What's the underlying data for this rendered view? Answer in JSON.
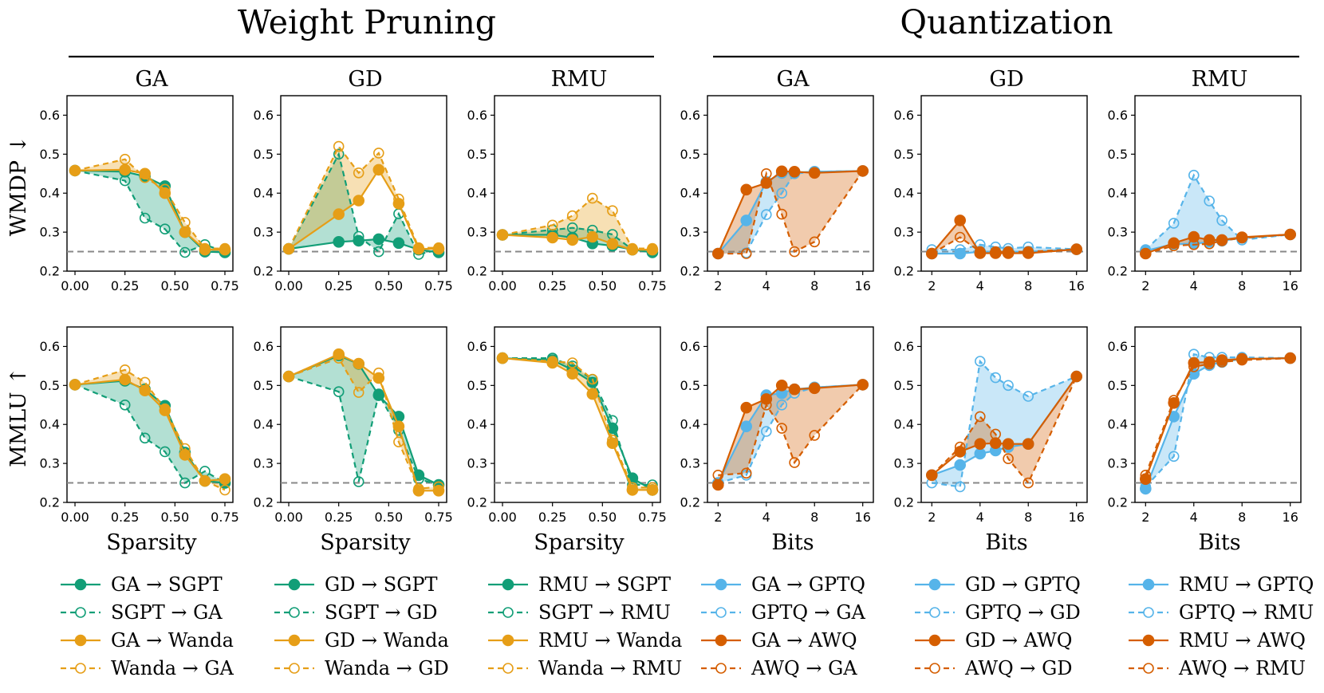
{
  "groups": [
    {
      "title": "Weight Pruning",
      "xlabel": "Sparsity"
    },
    {
      "title": "Quantization",
      "xlabel": "Bits"
    }
  ],
  "columns": [
    "GA",
    "GD",
    "RMU",
    "GA",
    "GD",
    "RMU"
  ],
  "rows": [
    {
      "label": "WMDP ↓"
    },
    {
      "label": "MMLU ↑"
    }
  ],
  "colors": {
    "green": "#129e77",
    "orange": "#e69e17",
    "blue": "#56b4e9",
    "darkorange": "#d55e00",
    "baseline": "#888888"
  },
  "legends": [
    [
      "GA → SGPT",
      "SGPT → GA",
      "GA → Wanda",
      "Wanda → GA"
    ],
    [
      "GD → SGPT",
      "SGPT → GD",
      "GD → Wanda",
      "Wanda → GD"
    ],
    [
      "RMU → SGPT",
      "SGPT → RMU",
      "RMU → Wanda",
      "Wanda → RMU"
    ],
    [
      "GA → GPTQ",
      "GPTQ → GA",
      "GA → AWQ",
      "AWQ → GA"
    ],
    [
      "GD → GPTQ",
      "GPTQ → GD",
      "GD → AWQ",
      "AWQ → GD"
    ],
    [
      "RMU → GPTQ",
      "GPTQ → RMU",
      "RMU → AWQ",
      "AWQ → RMU"
    ]
  ],
  "chart_data": {
    "type": "line",
    "ylim": [
      0.2,
      0.65
    ],
    "yticks": [
      "0.2",
      "0.3",
      "0.4",
      "0.5",
      "0.6"
    ],
    "baseline_y": 0.25,
    "pruning_x": [
      0,
      0.25,
      0.35,
      0.45,
      0.55,
      0.65,
      0.75
    ],
    "pruning_xlim": [
      -0.04,
      0.79
    ],
    "pruning_xticks": [
      "0.00",
      "0.25",
      "0.50",
      "0.75"
    ],
    "quant_x": [
      2,
      3,
      4,
      5,
      6,
      8,
      16
    ],
    "quant_xticks": [
      "2",
      "4",
      "8",
      "16"
    ],
    "panels": [
      {
        "row": 0,
        "col": 0,
        "series": [
          {
            "values": [
              0.458,
              0.455,
              0.443,
              0.418,
              0.3,
              0.25,
              0.248
            ]
          },
          {
            "values": [
              0.458,
              0.432,
              0.336,
              0.308,
              0.248,
              0.268,
              0.25
            ]
          },
          {
            "values": [
              0.458,
              0.46,
              0.45,
              0.4,
              0.3,
              0.255,
              0.255
            ]
          },
          {
            "values": [
              0.458,
              0.487,
              0.44,
              0.41,
              0.325,
              0.258,
              0.258
            ]
          }
        ]
      },
      {
        "row": 0,
        "col": 1,
        "series": [
          {
            "values": [
              0.257,
              0.275,
              0.278,
              0.282,
              0.272,
              0.255,
              0.248
            ]
          },
          {
            "values": [
              0.257,
              0.5,
              0.289,
              0.25,
              0.347,
              0.243,
              0.255
            ]
          },
          {
            "values": [
              0.257,
              0.346,
              0.381,
              0.46,
              0.373,
              0.257,
              0.257
            ]
          },
          {
            "values": [
              0.257,
              0.52,
              0.452,
              0.503,
              0.385,
              0.26,
              0.26
            ]
          }
        ]
      },
      {
        "row": 0,
        "col": 2,
        "series": [
          {
            "values": [
              0.293,
              0.293,
              0.286,
              0.271,
              0.265,
              0.255,
              0.248
            ]
          },
          {
            "values": [
              0.293,
              0.306,
              0.311,
              0.305,
              0.294,
              0.255,
              0.25
            ]
          },
          {
            "values": [
              0.293,
              0.286,
              0.28,
              0.288,
              0.27,
              0.255,
              0.255
            ]
          },
          {
            "values": [
              0.293,
              0.318,
              0.342,
              0.387,
              0.355,
              0.258,
              0.258
            ]
          }
        ]
      },
      {
        "row": 0,
        "col": 3,
        "series": [
          {
            "values": [
              0.245,
              0.33,
              0.429,
              0.452,
              0.453,
              0.455,
              0.457
            ]
          },
          {
            "values": [
              0.245,
              0.247,
              0.345,
              0.4,
              0.45,
              0.455,
              0.457
            ]
          },
          {
            "values": [
              0.245,
              0.409,
              0.426,
              0.456,
              0.455,
              0.452,
              0.457
            ]
          },
          {
            "values": [
              0.245,
              0.245,
              0.45,
              0.346,
              0.25,
              0.275,
              0.457
            ]
          }
        ]
      },
      {
        "row": 0,
        "col": 4,
        "series": [
          {
            "values": [
              0.245,
              0.245,
              0.25,
              0.248,
              0.25,
              0.25,
              0.256
            ]
          },
          {
            "values": [
              0.255,
              0.255,
              0.268,
              0.262,
              0.258,
              0.262,
              0.256
            ]
          },
          {
            "values": [
              0.245,
              0.33,
              0.246,
              0.246,
              0.246,
              0.246,
              0.256
            ]
          },
          {
            "values": [
              0.245,
              0.287,
              0.25,
              0.25,
              0.25,
              0.25,
              0.256
            ]
          }
        ]
      },
      {
        "row": 0,
        "col": 5,
        "series": [
          {
            "values": [
              0.252,
              0.27,
              0.27,
              0.275,
              0.278,
              0.285,
              0.294
            ]
          },
          {
            "values": [
              0.255,
              0.323,
              0.446,
              0.38,
              0.33,
              0.28,
              0.294
            ]
          },
          {
            "values": [
              0.245,
              0.272,
              0.288,
              0.28,
              0.28,
              0.287,
              0.294
            ]
          },
          {
            "values": [
              0.245,
              0.265,
              0.268,
              0.27,
              0.278,
              0.285,
              0.294
            ]
          }
        ]
      },
      {
        "row": 1,
        "col": 0,
        "series": [
          {
            "values": [
              0.502,
              0.512,
              0.49,
              0.448,
              0.328,
              0.255,
              0.25
            ]
          },
          {
            "values": [
              0.502,
              0.45,
              0.365,
              0.33,
              0.25,
              0.28,
              0.25
            ]
          },
          {
            "values": [
              0.502,
              0.515,
              0.487,
              0.436,
              0.322,
              0.255,
              0.26
            ]
          },
          {
            "values": [
              0.502,
              0.54,
              0.508,
              0.44,
              0.338,
              0.255,
              0.232
            ]
          }
        ]
      },
      {
        "row": 1,
        "col": 1,
        "series": [
          {
            "values": [
              0.523,
              0.577,
              0.555,
              0.475,
              0.42,
              0.27,
              0.245
            ]
          },
          {
            "values": [
              0.523,
              0.484,
              0.253,
              0.478,
              0.385,
              0.26,
              0.245
            ]
          },
          {
            "values": [
              0.523,
              0.58,
              0.556,
              0.519,
              0.395,
              0.23,
              0.23
            ]
          },
          {
            "values": [
              0.523,
              0.57,
              0.482,
              0.532,
              0.355,
              0.235,
              0.24
            ]
          }
        ]
      },
      {
        "row": 1,
        "col": 2,
        "series": [
          {
            "values": [
              0.57,
              0.565,
              0.54,
              0.508,
              0.39,
              0.262,
              0.232
            ]
          },
          {
            "values": [
              0.57,
              0.57,
              0.55,
              0.515,
              0.41,
              0.245,
              0.245
            ]
          },
          {
            "values": [
              0.57,
              0.558,
              0.53,
              0.478,
              0.352,
              0.232,
              0.232
            ]
          },
          {
            "values": [
              0.57,
              0.562,
              0.558,
              0.516,
              0.36,
              0.238,
              0.238
            ]
          }
        ]
      },
      {
        "row": 1,
        "col": 3,
        "series": [
          {
            "values": [
              0.25,
              0.395,
              0.475,
              0.48,
              0.49,
              0.495,
              0.502
            ]
          },
          {
            "values": [
              0.25,
              0.27,
              0.382,
              0.45,
              0.48,
              0.495,
              0.502
            ]
          },
          {
            "values": [
              0.245,
              0.443,
              0.465,
              0.5,
              0.49,
              0.493,
              0.502
            ]
          },
          {
            "values": [
              0.27,
              0.275,
              0.45,
              0.39,
              0.302,
              0.372,
              0.502
            ]
          }
        ]
      },
      {
        "row": 1,
        "col": 4,
        "series": [
          {
            "values": [
              0.27,
              0.296,
              0.325,
              0.333,
              0.342,
              0.35,
              0.523
            ]
          },
          {
            "values": [
              0.25,
              0.24,
              0.562,
              0.52,
              0.5,
              0.472,
              0.523
            ]
          },
          {
            "values": [
              0.27,
              0.33,
              0.35,
              0.352,
              0.35,
              0.35,
              0.523
            ]
          },
          {
            "values": [
              0.27,
              0.342,
              0.42,
              0.375,
              0.312,
              0.25,
              0.523
            ]
          }
        ]
      },
      {
        "row": 1,
        "col": 5,
        "series": [
          {
            "values": [
              0.235,
              0.42,
              0.53,
              0.552,
              0.56,
              0.568,
              0.57
            ]
          },
          {
            "values": [
              0.24,
              0.318,
              0.58,
              0.572,
              0.572,
              0.572,
              0.57
            ]
          },
          {
            "values": [
              0.26,
              0.455,
              0.558,
              0.56,
              0.565,
              0.568,
              0.57
            ]
          },
          {
            "values": [
              0.27,
              0.462,
              0.548,
              0.555,
              0.56,
              0.565,
              0.57
            ]
          }
        ]
      }
    ]
  }
}
